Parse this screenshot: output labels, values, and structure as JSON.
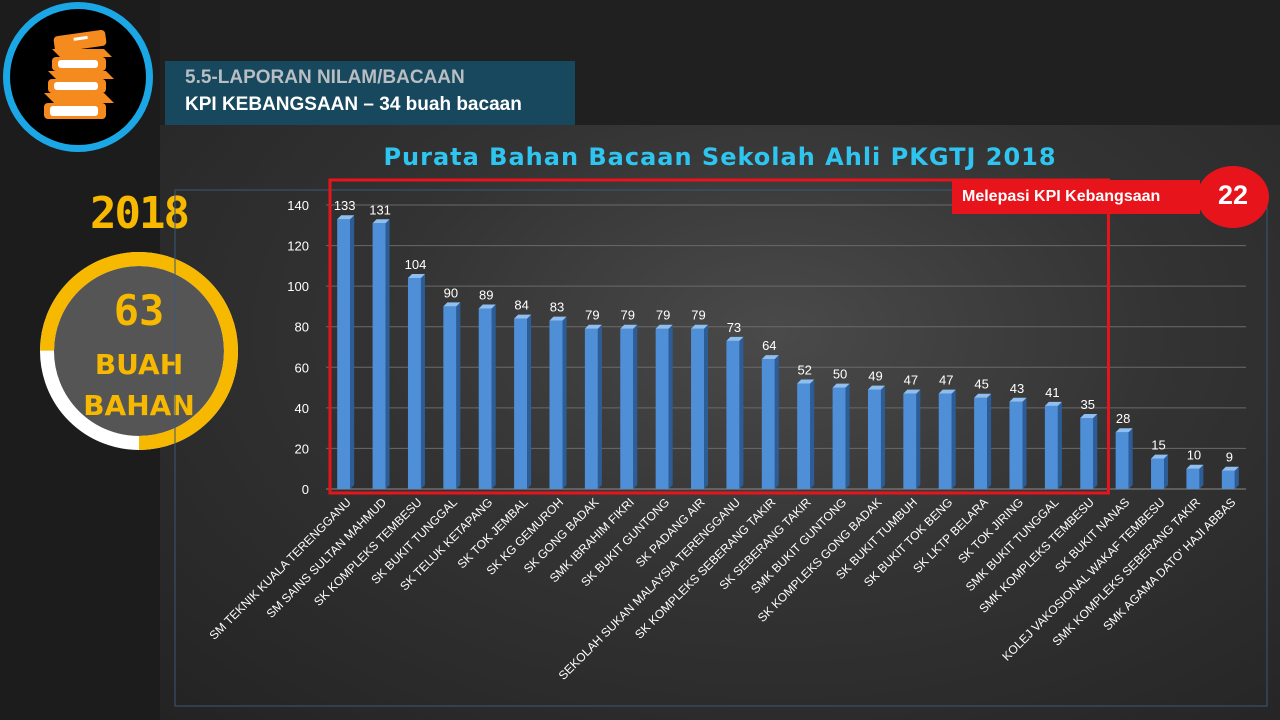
{
  "header": {
    "line1": "5.5-LAPORAN NILAM/BACAAN",
    "line2": "KPI KEBANGSAAN – 34 buah bacaan"
  },
  "logo": {
    "icon": "books-icon",
    "ring_color": "#1ba7e6"
  },
  "summary": {
    "year": "2018",
    "count": "63",
    "unit_line1": "BUAH",
    "unit_line2": "BAHAN",
    "accent_color": "#f7b800"
  },
  "kpi_badge": {
    "label": "Melepasi KPI Kebangsaan",
    "count": "22",
    "color": "#e8141b"
  },
  "chart_data": {
    "type": "bar",
    "title": "Purata Bahan Bacaan Sekolah Ahli PKGTJ 2018",
    "xlabel": "",
    "ylabel": "",
    "ylim": [
      0,
      140
    ],
    "yticks": [
      0,
      20,
      40,
      60,
      80,
      100,
      120,
      140
    ],
    "grid": true,
    "bar_color": "#4f8fd8",
    "highlight_color": "#e8141b",
    "highlighted_count": 22,
    "categories": [
      "SM TEKNIK KUALA TERENGGANU",
      "SM SAINS SULTAN MAHMUD",
      "SK KOMPLEKS TEMBESU",
      "SK BUKIT TUNGGAL",
      "SK TELUK KETAPANG",
      "SK TOK JEMBAL",
      "SK KG GEMUROH",
      "SK GONG BADAK",
      "SMK IBRAHIM FIKRI",
      "SK BUKIT GUNTONG",
      "SK PADANG AIR",
      "SEKOLAH SUKAN MALAYSIA TERENGGANU",
      "SK KOMPLEKS SEBERANG TAKIR",
      "SK SEBERANG TAKIR",
      "SMK BUKIT GUNTONG",
      "SK KOMPLEKS GONG BADAK",
      "SK BUKIT TUMBUH",
      "SK BUKIT TOK BENG",
      "SK LKTP BELARA",
      "SK TOK JIRING",
      "SMK BUKIT TUNGGAL",
      "SMK KOMPLEKS TEMBESU",
      "SK BUKIT NANAS",
      "KOLEJ VAKOSIONAL WAKAF TEMBESU",
      "SMK KOMPLEKS SEBERANG TAKIR",
      "SMK AGAMA DATO' HAJI ABBAS"
    ],
    "values": [
      133,
      131,
      104,
      90,
      89,
      84,
      83,
      79,
      79,
      79,
      79,
      73,
      64,
      52,
      50,
      49,
      47,
      47,
      45,
      43,
      41,
      35,
      28,
      15,
      10,
      9
    ]
  }
}
